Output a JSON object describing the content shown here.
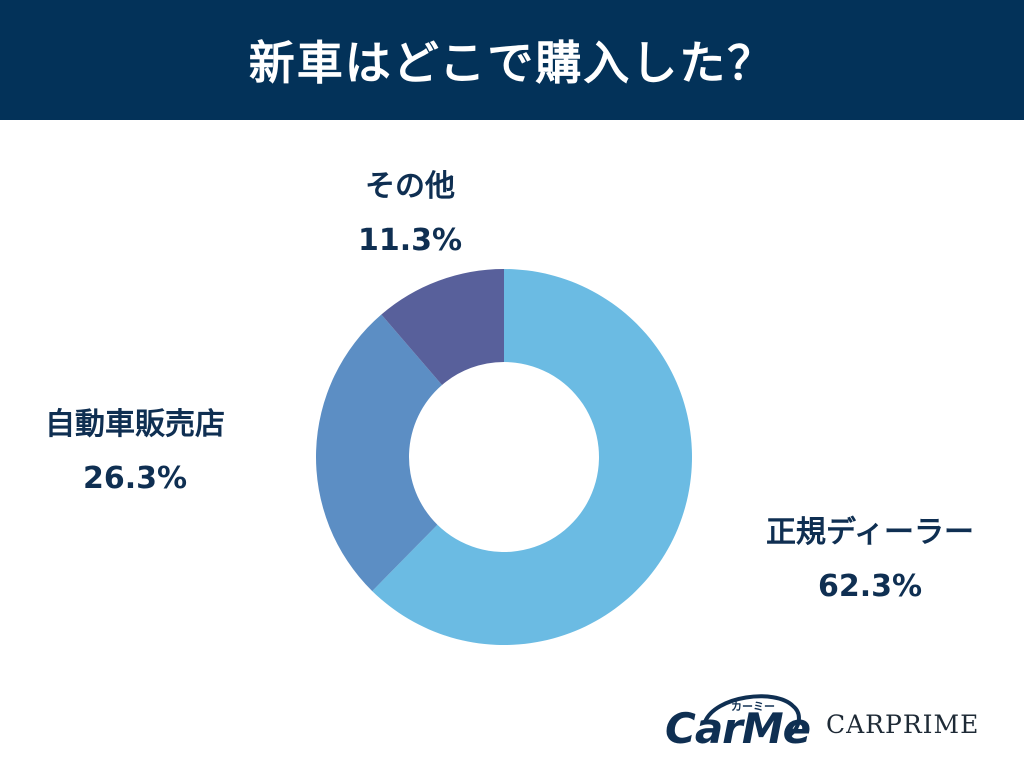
{
  "header": {
    "title": "新車はどこで購入した？"
  },
  "chart_data": {
    "type": "pie",
    "style": "donut",
    "categories": [
      "正規ディーラー",
      "自動車販売店",
      "その他"
    ],
    "values": [
      62.3,
      26.3,
      11.3
    ],
    "value_labels": [
      "62.3%",
      "26.3%",
      "11.3%"
    ],
    "colors": [
      "#6bbbe3",
      "#5c8ec4",
      "#58609b"
    ],
    "legend": "none"
  },
  "logos": {
    "carme": "CarMe",
    "carme_kana": "カーミー",
    "carprime": "CARPRIME"
  }
}
